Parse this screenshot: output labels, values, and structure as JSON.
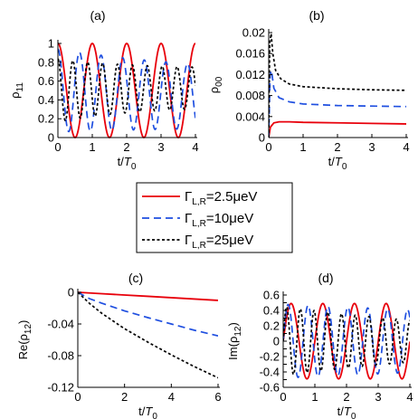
{
  "chart_data": [
    {
      "panel": "(a)",
      "type": "line",
      "xlabel": "t/T",
      "xlabel_sub": "0",
      "ylabel": "ρ",
      "ylabel_sub": "11",
      "xlim": [
        0,
        4
      ],
      "ylim": [
        0,
        1
      ],
      "xticks": [
        "0",
        "1",
        "2",
        "3",
        "4"
      ],
      "yticks": [
        "0",
        "0.2",
        "0.4",
        "0.6",
        "0.8",
        "1"
      ],
      "series": [
        {
          "name": "ΓL,R=2.5μeV",
          "color": "#e8000b",
          "style": "solid",
          "model": {
            "kind": "cos2",
            "omega": 6.28,
            "gamma": 0.0,
            "offset": 0.0
          }
        },
        {
          "name": "ΓL,R=10μeV",
          "color": "#1f4fe0",
          "style": "dashed",
          "model": {
            "kind": "cos2",
            "omega": 10.0,
            "gamma": 0.2,
            "offset": 0.12
          }
        },
        {
          "name": "ΓL,R=25μeV",
          "color": "#000000",
          "style": "dotted",
          "model": {
            "kind": "cos2",
            "omega": 14.5,
            "gamma": 0.45,
            "offset": 0.33
          }
        }
      ]
    },
    {
      "panel": "(b)",
      "type": "line",
      "xlabel": "t/T",
      "xlabel_sub": "0",
      "ylabel": "ρ",
      "ylabel_sub": "00",
      "xlim": [
        0,
        4
      ],
      "ylim": [
        0,
        0.02
      ],
      "xticks": [
        "0",
        "1",
        "2",
        "3",
        "4"
      ],
      "yticks": [
        "0",
        "0.004",
        "0.008",
        "0.012",
        "0.016",
        "0.02"
      ],
      "series": [
        {
          "name": "ΓL,R=2.5μeV",
          "color": "#e8000b",
          "style": "solid",
          "points": [
            [
              0,
              0
            ],
            [
              0.05,
              0.002
            ],
            [
              0.15,
              0.0028
            ],
            [
              0.3,
              0.003
            ],
            [
              0.6,
              0.003
            ],
            [
              1,
              0.0029
            ],
            [
              2,
              0.0028
            ],
            [
              3,
              0.0027
            ],
            [
              4,
              0.0026
            ]
          ]
        },
        {
          "name": "ΓL,R=10μeV",
          "color": "#1f4fe0",
          "style": "dashed",
          "points": [
            [
              0,
              0
            ],
            [
              0.04,
              0.012
            ],
            [
              0.08,
              0.0128
            ],
            [
              0.15,
              0.0094
            ],
            [
              0.3,
              0.0076
            ],
            [
              0.6,
              0.0068
            ],
            [
              1,
              0.0064
            ],
            [
              2,
              0.0061
            ],
            [
              3,
              0.006
            ],
            [
              4,
              0.0059
            ]
          ]
        },
        {
          "name": "ΓL,R=25μeV",
          "color": "#000000",
          "style": "dotted",
          "points": [
            [
              0,
              0
            ],
            [
              0.03,
              0.018
            ],
            [
              0.07,
              0.0198
            ],
            [
              0.12,
              0.016
            ],
            [
              0.2,
              0.0128
            ],
            [
              0.35,
              0.0112
            ],
            [
              0.6,
              0.0102
            ],
            [
              1,
              0.0097
            ],
            [
              2,
              0.0093
            ],
            [
              3,
              0.0091
            ],
            [
              4,
              0.009
            ]
          ]
        }
      ]
    },
    {
      "panel": "(c)",
      "type": "line",
      "xlabel": "t/T",
      "xlabel_sub": "0",
      "ylabel": "Re(ρ",
      "ylabel_sub": "12",
      "ylabel_close": ")",
      "xlim": [
        0,
        6
      ],
      "ylim": [
        -0.12,
        0
      ],
      "xticks": [
        "0",
        "2",
        "4",
        "6"
      ],
      "yticks": [
        "-0.12",
        "-0.08",
        "-0.04",
        "0"
      ],
      "series": [
        {
          "name": "ΓL,R=2.5μeV",
          "color": "#e8000b",
          "style": "solid",
          "points": [
            [
              0,
              0
            ],
            [
              1,
              -0.0017
            ],
            [
              2,
              -0.0034
            ],
            [
              3,
              -0.0051
            ],
            [
              4,
              -0.0068
            ],
            [
              5,
              -0.0085
            ],
            [
              6,
              -0.0102
            ]
          ]
        },
        {
          "name": "ΓL,R=10μeV",
          "color": "#1f4fe0",
          "style": "dashed",
          "points": [
            [
              0,
              0
            ],
            [
              0.5,
              -0.008
            ],
            [
              1,
              -0.0135
            ],
            [
              2,
              -0.0235
            ],
            [
              3,
              -0.032
            ],
            [
              4,
              -0.04
            ],
            [
              5,
              -0.048
            ],
            [
              6,
              -0.055
            ]
          ]
        },
        {
          "name": "ΓL,R=25μeV",
          "color": "#000000",
          "style": "dotted",
          "points": [
            [
              0,
              0
            ],
            [
              0.5,
              -0.014
            ],
            [
              1,
              -0.026
            ],
            [
              1.5,
              -0.036
            ],
            [
              2,
              -0.046
            ],
            [
              3,
              -0.063
            ],
            [
              4,
              -0.079
            ],
            [
              5,
              -0.094
            ],
            [
              6,
              -0.108
            ]
          ]
        }
      ]
    },
    {
      "panel": "(d)",
      "type": "line",
      "xlabel": "t/T",
      "xlabel_sub": "0",
      "ylabel": "Im(ρ",
      "ylabel_sub": "12",
      "ylabel_close": ")",
      "xlim": [
        0,
        4
      ],
      "ylim": [
        -0.6,
        0.6
      ],
      "xticks": [
        "0",
        "1",
        "2",
        "3",
        "4"
      ],
      "yticks": [
        "-0.6",
        "-0.5",
        "-0.4",
        "-0.3",
        "-0.2",
        "-0.1",
        "0",
        "0.1",
        "0.2",
        "0.3",
        "0.4",
        "0.5",
        "0.6"
      ],
      "series": [
        {
          "name": "ΓL,R=2.5μeV",
          "color": "#e8000b",
          "style": "solid",
          "model": {
            "kind": "sin",
            "amp": 0.49,
            "omega": 6.28,
            "gamma": 0.0
          }
        },
        {
          "name": "ΓL,R=10μeV",
          "color": "#1f4fe0",
          "style": "dashed",
          "model": {
            "kind": "sin",
            "amp": 0.48,
            "omega": 10.0,
            "gamma": 0.08
          }
        },
        {
          "name": "ΓL,R=25μeV",
          "color": "#000000",
          "style": "dotted",
          "model": {
            "kind": "sin",
            "amp": 0.45,
            "omega": 14.5,
            "gamma": 0.25
          }
        }
      ]
    }
  ],
  "legend": {
    "entries": [
      {
        "label_main": "Γ",
        "label_sub": "L,R",
        "label_rest": "=2.5μeV",
        "color": "#e8000b",
        "style": "solid"
      },
      {
        "label_main": "Γ",
        "label_sub": "L,R",
        "label_rest": "=10μeV",
        "color": "#1f4fe0",
        "style": "dashed"
      },
      {
        "label_main": "Γ",
        "label_sub": "L,R",
        "label_rest": "=25μeV",
        "color": "#000000",
        "style": "dotted"
      }
    ]
  }
}
